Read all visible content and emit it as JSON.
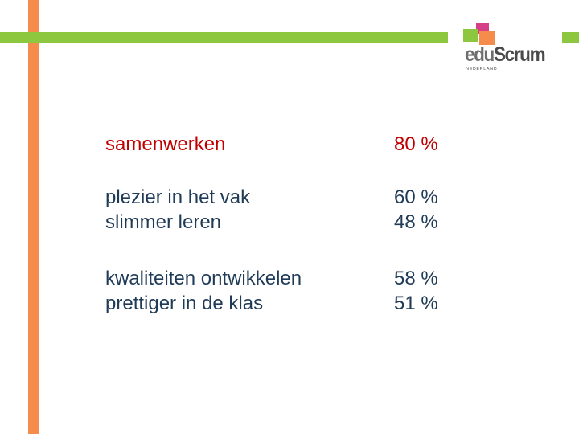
{
  "colors": {
    "orange_bar": "#f58c4b",
    "green_bar": "#8dc63f",
    "highlight_text": "#c00000",
    "body_text": "#1f3b57",
    "logo_pink": "#d63e85",
    "logo_green": "#8dc63f",
    "logo_orange": "#f58c4b"
  },
  "logo": {
    "part1": "edu",
    "part2": "Scrum",
    "subtitle": "NEDERLAND"
  },
  "rows": [
    {
      "labels": [
        "samenwerken"
      ],
      "values": [
        "80 %"
      ],
      "highlight": true
    },
    {
      "labels": [
        "plezier in het vak",
        "slimmer leren"
      ],
      "values": [
        "60 %",
        "48 %"
      ],
      "highlight": false
    },
    {
      "labels": [
        "kwaliteiten ontwikkelen",
        "prettiger in de klas"
      ],
      "values": [
        "58 %",
        "51 %"
      ],
      "highlight": false
    }
  ]
}
